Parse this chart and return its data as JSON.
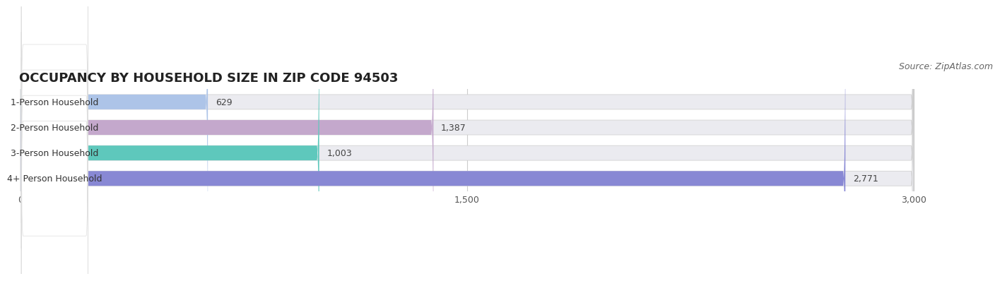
{
  "title": "OCCUPANCY BY HOUSEHOLD SIZE IN ZIP CODE 94503",
  "source": "Source: ZipAtlas.com",
  "categories": [
    "1-Person Household",
    "2-Person Household",
    "3-Person Household",
    "4+ Person Household"
  ],
  "values": [
    629,
    1387,
    1003,
    2771
  ],
  "bar_colors": [
    "#adc4e8",
    "#c4a8cc",
    "#5ec8bc",
    "#8888d4"
  ],
  "xlim_max": 3000,
  "xticks": [
    0,
    1500,
    3000
  ],
  "background_color": "#ffffff",
  "bar_bg_color": "#ebebf0",
  "title_fontsize": 13,
  "source_fontsize": 9,
  "label_fontsize": 9,
  "value_fontsize": 9
}
